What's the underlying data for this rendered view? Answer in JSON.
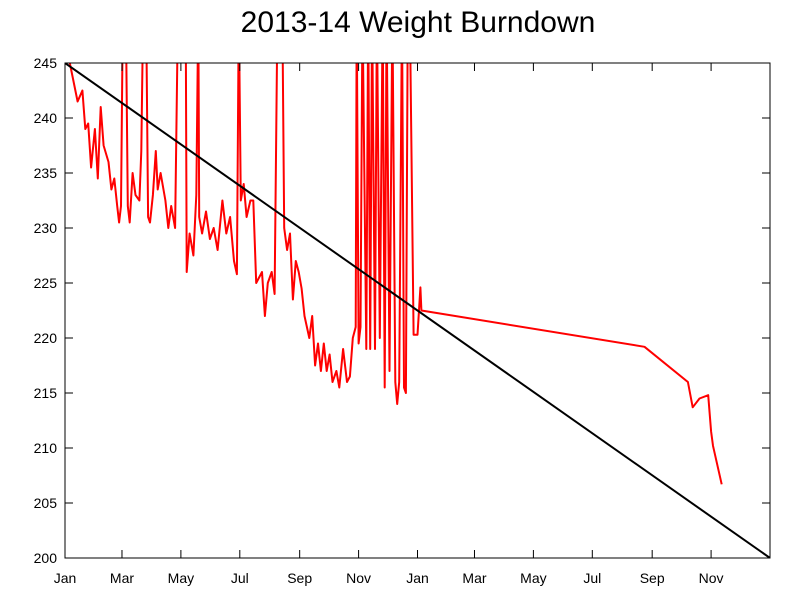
{
  "chart_data": {
    "type": "line",
    "title": "2013-14 Weight Burndown",
    "xlim": [
      0,
      730
    ],
    "ylim": [
      200,
      245
    ],
    "xticks": [
      {
        "value": 0,
        "label": "Jan"
      },
      {
        "value": 59,
        "label": "Mar"
      },
      {
        "value": 120,
        "label": "May"
      },
      {
        "value": 181,
        "label": "Jul"
      },
      {
        "value": 243,
        "label": "Sep"
      },
      {
        "value": 304,
        "label": "Nov"
      },
      {
        "value": 365,
        "label": "Jan"
      },
      {
        "value": 424,
        "label": "Mar"
      },
      {
        "value": 485,
        "label": "May"
      },
      {
        "value": 546,
        "label": "Jul"
      },
      {
        "value": 608,
        "label": "Sep"
      },
      {
        "value": 669,
        "label": "Nov"
      }
    ],
    "yticks": [
      200,
      205,
      210,
      215,
      220,
      225,
      230,
      235,
      240,
      245
    ],
    "series": [
      {
        "color": "#ff0000",
        "x": [
          5,
          13,
          18,
          21,
          24,
          27,
          31,
          34,
          37,
          40,
          45,
          48,
          51,
          54,
          56,
          58,
          60,
          63,
          65,
          67,
          70,
          73,
          77,
          79,
          81,
          84,
          86,
          88,
          91,
          94,
          96,
          99,
          104,
          107,
          110,
          114,
          117,
          125,
          126,
          129,
          133,
          136,
          138,
          139,
          142,
          146,
          150,
          154,
          158,
          163,
          167,
          171,
          175,
          178,
          180,
          182,
          185,
          188,
          192,
          195,
          198,
          201,
          204,
          207,
          210,
          214,
          217,
          220,
          225,
          227,
          230,
          233,
          236,
          239,
          242,
          245,
          248,
          253,
          256,
          259,
          262,
          265,
          268,
          271,
          274,
          277,
          281,
          284,
          288,
          292,
          295,
          298,
          301,
          302,
          304,
          306,
          308,
          312,
          314,
          316,
          318,
          321,
          323,
          326,
          329,
          331,
          333,
          336,
          339,
          342,
          344,
          346,
          349,
          351,
          353,
          355,
          357,
          361,
          365,
          368,
          369,
          600,
          645,
          650,
          657,
          666,
          669,
          671,
          680
        ],
        "values": [
          245,
          241.5,
          242.5,
          239,
          239.5,
          235.5,
          239,
          234.5,
          241,
          237.5,
          236,
          233.5,
          234.5,
          232,
          230.5,
          232,
          250,
          250,
          232,
          230.5,
          235,
          233,
          232.5,
          237,
          250,
          250,
          231,
          230.5,
          233,
          237,
          233.5,
          235,
          232.5,
          230,
          232,
          230,
          250,
          250,
          226,
          229.5,
          227.5,
          233,
          250,
          231,
          229.5,
          231.5,
          229,
          230,
          228,
          232.5,
          229.5,
          231,
          227,
          225.8,
          250,
          232.5,
          234,
          231,
          232.5,
          232.5,
          225,
          225.5,
          226,
          222,
          225,
          226,
          224,
          250,
          250,
          230,
          228,
          229.5,
          223.5,
          227,
          226,
          224.5,
          222,
          220,
          222,
          217.5,
          219.5,
          217,
          219.5,
          217,
          218.5,
          216,
          217,
          215.5,
          219,
          216,
          216.5,
          220,
          221,
          250,
          219.5,
          221,
          250,
          219,
          250,
          219,
          250,
          219,
          250,
          220,
          250,
          215.5,
          250,
          217,
          250,
          216,
          214,
          216,
          250,
          215.5,
          215,
          250,
          250,
          220.3,
          220.3,
          224.6,
          222.5,
          219.2,
          216,
          213.7,
          214.5,
          214.8,
          211.5,
          210.2,
          206.7
        ]
      },
      {
        "color": "#000000",
        "x": [
          0,
          730
        ],
        "values": [
          245,
          200
        ]
      }
    ]
  }
}
